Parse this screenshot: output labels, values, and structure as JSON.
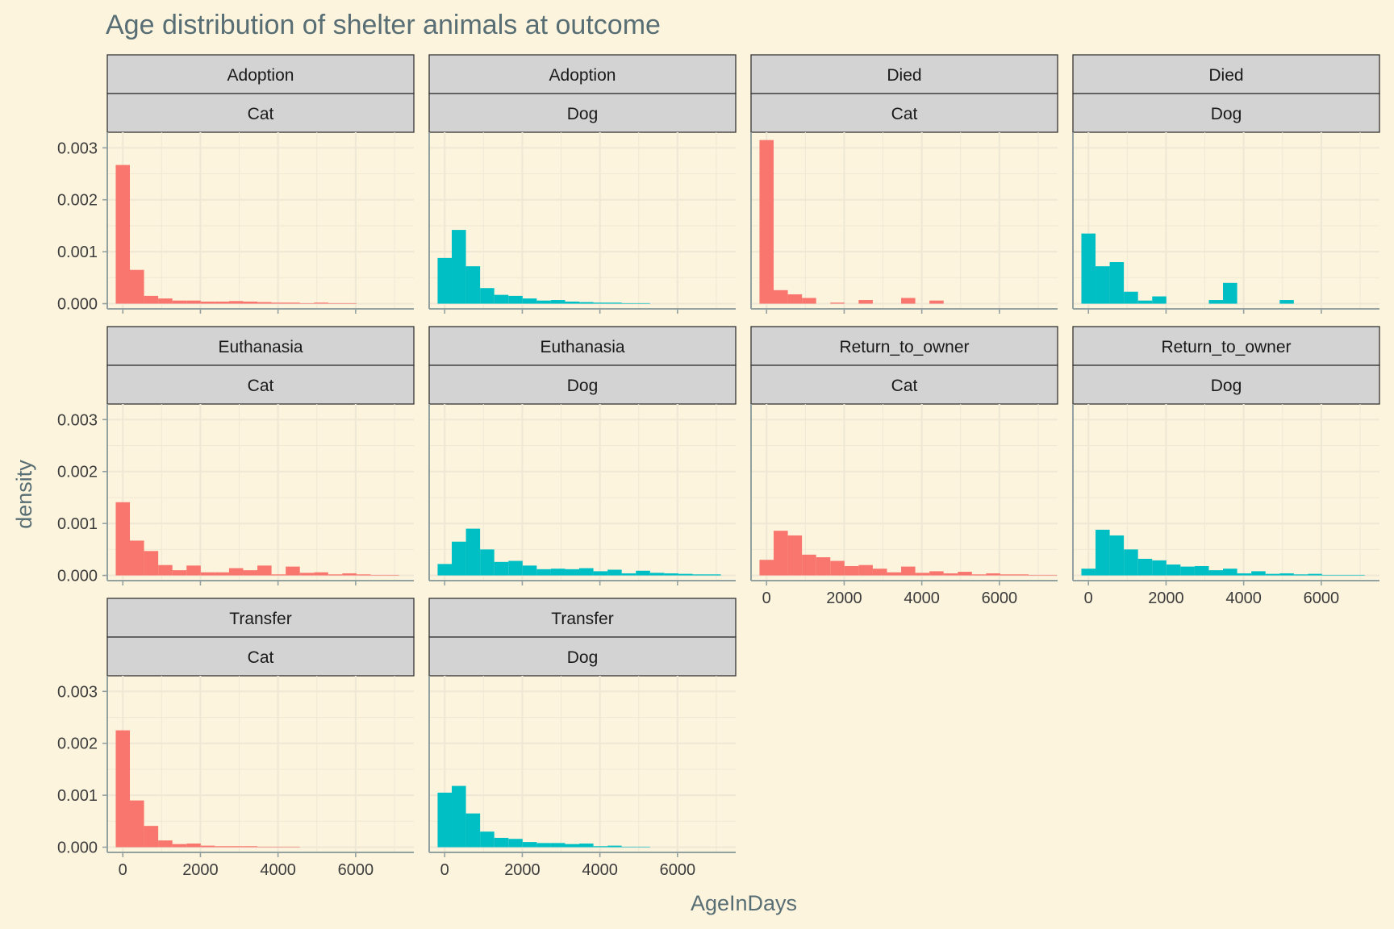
{
  "chart_data": {
    "type": "bar",
    "title": "Age distribution of shelter animals at outcome",
    "xlabel": "AgeInDays",
    "ylabel": "density",
    "xlim": [
      -400,
      7500
    ],
    "ylim": [
      -0.0001,
      0.0033
    ],
    "x_ticks": [
      0,
      2000,
      4000,
      6000
    ],
    "x_tick_labels": [
      "0",
      "2000",
      "4000",
      "6000"
    ],
    "y_ticks": [
      0,
      0.001,
      0.002,
      0.003
    ],
    "y_tick_labels": [
      "0.000",
      "0.001",
      "0.002",
      "0.003"
    ],
    "bin_starts": [
      -182.5,
      182.5,
      547.5,
      912.5,
      1277.5,
      1642.5,
      2007.5,
      2372.5,
      2737.5,
      3102.5,
      3467.5,
      3832.5,
      4197.5,
      4562.5,
      4927.5,
      5292.5,
      5657.5,
      6022.5,
      6387.5,
      6752.5,
      7117.5
    ],
    "bin_width": 365,
    "bins_per_year": 2,
    "grid": true,
    "legend": "none",
    "colors": {
      "Cat": "#f8766d",
      "Dog": "#00bfc4"
    },
    "panels": [
      {
        "outcome": "Adoption",
        "animal": "Cat",
        "densities": [
          0.00267,
          0.00065,
          0.00015,
          0.0001,
          6e-05,
          6e-05,
          4e-05,
          4e-05,
          5e-05,
          4e-05,
          3e-05,
          2e-05,
          2e-05,
          1e-05,
          2e-05,
          1e-05,
          1e-05,
          0,
          0,
          0,
          0
        ]
      },
      {
        "outcome": "Adoption",
        "animal": "Dog",
        "densities": [
          0.00088,
          0.00142,
          0.00072,
          0.0003,
          0.00017,
          0.00015,
          0.0001,
          6e-05,
          7e-05,
          4e-05,
          3e-05,
          2e-05,
          2e-05,
          1e-05,
          1e-05,
          0,
          0,
          0,
          0,
          0,
          0
        ]
      },
      {
        "outcome": "Died",
        "animal": "Cat",
        "densities": [
          0.00315,
          0.00026,
          0.00018,
          0.00011,
          0,
          2e-05,
          0,
          7e-05,
          0,
          0,
          0.00011,
          0,
          6e-05,
          0,
          0,
          0,
          0,
          0,
          0,
          0,
          0
        ]
      },
      {
        "outcome": "Died",
        "animal": "Dog",
        "densities": [
          0.00135,
          0.00072,
          0.0008,
          0.00023,
          6e-05,
          0.00014,
          0,
          0,
          0,
          7e-05,
          0.0004,
          0,
          0,
          0,
          7e-05,
          0,
          0,
          0,
          0,
          0,
          0
        ]
      },
      {
        "outcome": "Euthanasia",
        "animal": "Cat",
        "densities": [
          0.00141,
          0.00067,
          0.00047,
          0.0002,
          0.0001,
          0.00019,
          6e-05,
          6e-05,
          0.00014,
          0.0001,
          0.00019,
          2e-05,
          0.00017,
          5e-05,
          6e-05,
          2e-05,
          4e-05,
          2e-05,
          1e-05,
          1e-05,
          0
        ]
      },
      {
        "outcome": "Euthanasia",
        "animal": "Dog",
        "densities": [
          0.00022,
          0.00065,
          0.0009,
          0.0005,
          0.00026,
          0.00028,
          0.00019,
          0.00012,
          0.00013,
          0.00012,
          0.00014,
          8e-05,
          0.00011,
          4e-05,
          9e-05,
          5e-05,
          4e-05,
          3e-05,
          2e-05,
          2e-05,
          0
        ]
      },
      {
        "outcome": "Return_to_owner",
        "animal": "Cat",
        "densities": [
          0.0003,
          0.00086,
          0.00077,
          0.0004,
          0.00035,
          0.00028,
          0.00018,
          0.0002,
          0.00013,
          6e-05,
          0.00017,
          5e-05,
          8e-05,
          4e-05,
          7e-05,
          2e-05,
          4e-05,
          2e-05,
          2e-05,
          1e-05,
          1e-05
        ]
      },
      {
        "outcome": "Return_to_owner",
        "animal": "Dog",
        "densities": [
          0.00013,
          0.00088,
          0.00077,
          0.0005,
          0.00032,
          0.00029,
          0.00021,
          0.00017,
          0.00018,
          0.0001,
          0.00013,
          4e-05,
          8e-05,
          3e-05,
          4e-05,
          2e-05,
          3e-05,
          1e-05,
          1e-05,
          1e-05,
          0
        ]
      },
      {
        "outcome": "Transfer",
        "animal": "Cat",
        "densities": [
          0.00225,
          0.0009,
          0.00041,
          0.00013,
          6e-05,
          7e-05,
          3e-05,
          2e-05,
          2e-05,
          2e-05,
          1e-05,
          1e-05,
          1e-05,
          0,
          0,
          0,
          0,
          0,
          0,
          0,
          0
        ]
      },
      {
        "outcome": "Transfer",
        "animal": "Dog",
        "densities": [
          0.00105,
          0.00118,
          0.00065,
          0.0003,
          0.00018,
          0.00016,
          0.0001,
          8e-05,
          8e-05,
          6e-05,
          7e-05,
          2e-05,
          3e-05,
          1e-05,
          1e-05,
          0,
          0,
          0,
          0,
          0,
          0
        ]
      }
    ]
  }
}
